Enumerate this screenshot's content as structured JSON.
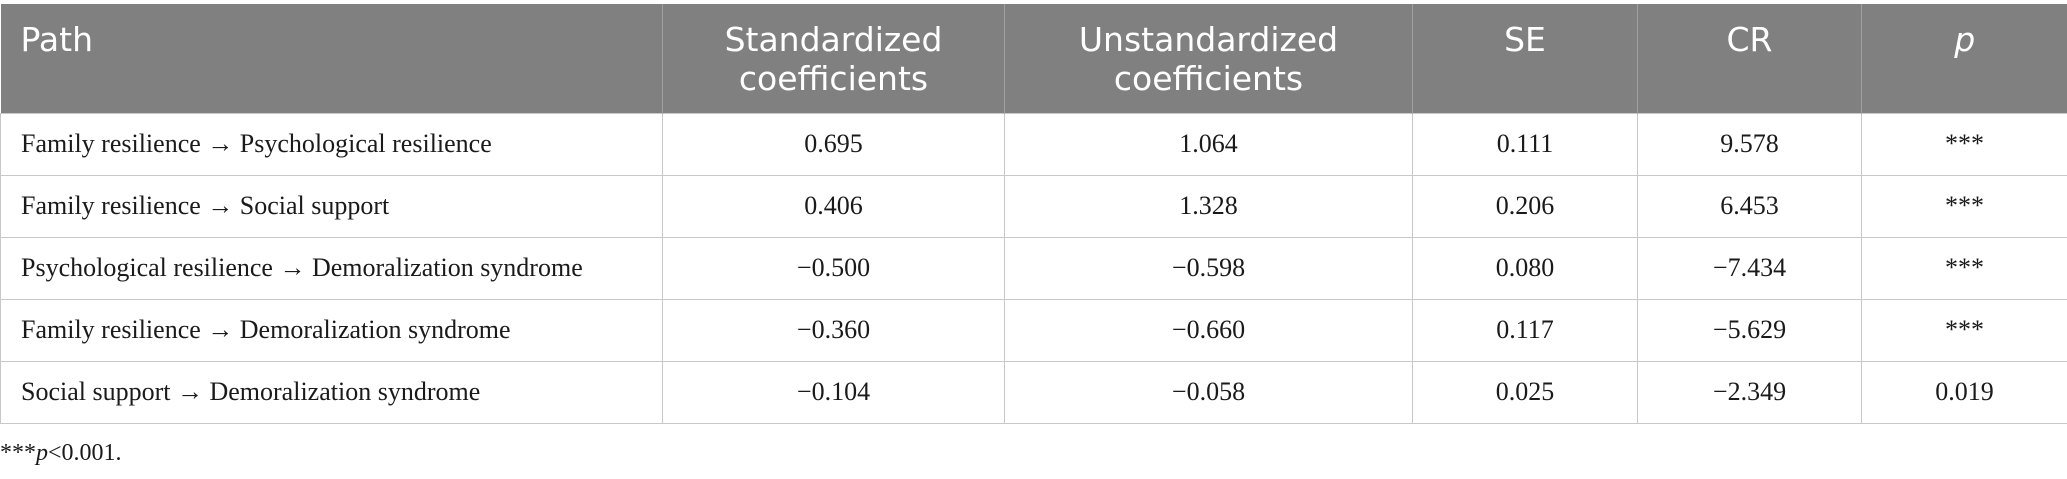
{
  "table": {
    "header": [
      "Path",
      "Standardized coefficients",
      "Unstandardized coefficients",
      "SE",
      "CR",
      "p"
    ],
    "rows": [
      [
        "Family resilience → Psychological resilience",
        "0.695",
        "1.064",
        "0.111",
        "9.578",
        "***"
      ],
      [
        "Family resilience → Social support",
        "0.406",
        "1.328",
        "0.206",
        "6.453",
        "***"
      ],
      [
        "Psychological resilience → Demoralization syndrome",
        "−0.500",
        "−0.598",
        "0.080",
        "−7.434",
        "***"
      ],
      [
        "Family resilience → Demoralization syndrome",
        "−0.360",
        "−0.660",
        "0.117",
        "−5.629",
        "***"
      ],
      [
        "Social support → Demoralization syndrome",
        "−0.104",
        "−0.058",
        "0.025",
        "−2.349",
        "0.019"
      ]
    ]
  },
  "footnote": [
    "***",
    "p",
    "<0.001."
  ]
}
